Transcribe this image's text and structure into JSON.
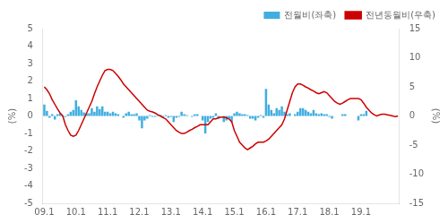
{
  "chart_data": {
    "type": "bar",
    "categories": [
      "09.1",
      null,
      null,
      null,
      null,
      null,
      null,
      null,
      null,
      null,
      null,
      null,
      "10.1",
      null,
      null,
      null,
      null,
      null,
      null,
      null,
      null,
      null,
      null,
      null,
      "11.1",
      null,
      null,
      null,
      null,
      null,
      null,
      null,
      null,
      null,
      null,
      null,
      "12.1",
      null,
      null,
      null,
      null,
      null,
      null,
      null,
      null,
      null,
      null,
      null,
      "13.1",
      null,
      null,
      null,
      null,
      null,
      null,
      null,
      null,
      null,
      null,
      null,
      "14.1",
      null,
      null,
      null,
      null,
      null,
      null,
      null,
      null,
      null,
      null,
      null,
      "15.1",
      null,
      null,
      null,
      null,
      null,
      null,
      null,
      null,
      null,
      null,
      null,
      "16.1",
      null,
      null,
      null,
      null,
      null,
      null,
      null,
      null,
      null,
      null,
      null,
      "17.1",
      null,
      null,
      null,
      null,
      null,
      null,
      null,
      null,
      null,
      null,
      null,
      "18.1",
      null,
      null,
      null,
      null,
      null,
      null,
      null,
      null,
      null,
      null,
      null,
      "19.1",
      null,
      null,
      null,
      null,
      null,
      null,
      null,
      null,
      null,
      null,
      null,
      null,
      null,
      null
    ],
    "series": [
      {
        "name": "전월비(좌축)",
        "type": "bar",
        "color": "#42aee0",
        "values": [
          0.65,
          0.3,
          -0.1,
          0.1,
          -0.2,
          0.1,
          0.15,
          -0.05,
          -0.05,
          0.1,
          0.25,
          0.35,
          0.9,
          0.55,
          0.35,
          0.2,
          0.15,
          0.15,
          0.45,
          0.25,
          0.55,
          0.4,
          0.55,
          0.25,
          0.25,
          0.15,
          0.25,
          0.15,
          0.1,
          0.0,
          -0.1,
          0.15,
          0.25,
          0.1,
          0.1,
          0.15,
          -0.25,
          -0.7,
          -0.25,
          -0.15,
          0.05,
          -0.05,
          -0.05,
          0.05,
          0.05,
          -0.1,
          0.05,
          -0.1,
          -0.05,
          -0.35,
          -0.1,
          -0.05,
          0.25,
          0.1,
          0.05,
          0.0,
          -0.05,
          0.1,
          0.1,
          0.0,
          -0.25,
          -1.0,
          -0.35,
          -0.15,
          -0.1,
          0.15,
          -0.15,
          0.0,
          -0.35,
          -0.25,
          -0.15,
          -0.35,
          0.15,
          0.25,
          0.15,
          0.1,
          0.1,
          0.05,
          -0.15,
          -0.15,
          -0.25,
          -0.1,
          0.05,
          -0.1,
          1.55,
          0.65,
          0.35,
          0.15,
          0.45,
          0.35,
          0.55,
          0.25,
          0.1,
          0.15,
          0.0,
          0.1,
          0.25,
          0.45,
          0.45,
          0.35,
          0.25,
          0.15,
          0.35,
          0.15,
          0.1,
          0.15,
          0.1,
          0.1,
          -0.05,
          -0.15,
          0.0,
          0.0,
          0.0,
          0.1,
          0.1,
          0.0,
          0.0,
          0.0,
          0.0,
          -0.25,
          0.1,
          0.1,
          0.3,
          null,
          null,
          null,
          null,
          null,
          null,
          null,
          null,
          null,
          null,
          null,
          null
        ]
      },
      {
        "name": "전년동월비(우축)",
        "type": "line",
        "color": "#cc0000",
        "axis": "y2",
        "values": [
          5.0,
          4.5,
          3.8,
          2.8,
          2.0,
          1.2,
          0.5,
          0.0,
          -1.5,
          -2.5,
          -3.3,
          -3.5,
          -3.3,
          -2.5,
          -1.5,
          -0.5,
          0.5,
          1.5,
          2.5,
          3.8,
          5.0,
          6.0,
          7.0,
          7.8,
          8.0,
          8.0,
          7.8,
          7.3,
          6.8,
          6.2,
          5.5,
          5.0,
          4.5,
          4.0,
          3.5,
          3.0,
          2.5,
          2.0,
          1.5,
          1.0,
          0.8,
          0.7,
          0.5,
          0.2,
          0.0,
          -0.3,
          -0.5,
          -1.0,
          -1.5,
          -2.0,
          -2.5,
          -2.8,
          -3.0,
          -3.0,
          -2.8,
          -2.5,
          -2.3,
          -2.0,
          -1.8,
          -1.5,
          -1.5,
          -1.5,
          -1.5,
          -1.0,
          -0.5,
          -0.5,
          -0.3,
          -0.2,
          -0.2,
          -0.3,
          -0.5,
          -1.0,
          -2.5,
          -3.5,
          -4.5,
          -5.0,
          -5.5,
          -5.8,
          -5.5,
          -5.2,
          -4.8,
          -4.5,
          -4.5,
          -4.5,
          -4.3,
          -4.0,
          -3.5,
          -3.0,
          -2.5,
          -2.0,
          -1.5,
          -0.5,
          1.0,
          2.5,
          4.0,
          5.0,
          5.5,
          5.5,
          5.3,
          5.0,
          4.8,
          4.5,
          4.3,
          4.0,
          3.8,
          4.0,
          4.2,
          4.0,
          3.5,
          3.0,
          2.5,
          2.2,
          2.0,
          2.2,
          2.5,
          2.8,
          3.0,
          3.0,
          3.0,
          3.0,
          2.8,
          2.2,
          1.5,
          1.0,
          0.5,
          0.2,
          0.0,
          0.2,
          0.3,
          0.3,
          0.2,
          0.1,
          0.0,
          -0.1,
          0.0
        ]
      }
    ],
    "ylabel": "(%)",
    "y2label": "(%)",
    "ylim": [
      -5,
      5
    ],
    "yticks": [
      -5,
      -4,
      -3,
      -2,
      -1,
      0,
      1,
      2,
      3,
      4,
      5
    ],
    "y2lim": [
      -15,
      15
    ],
    "y2ticks": [
      -15,
      -10,
      -5,
      0,
      5,
      10,
      15
    ],
    "grid": false,
    "legend": "upper right"
  }
}
